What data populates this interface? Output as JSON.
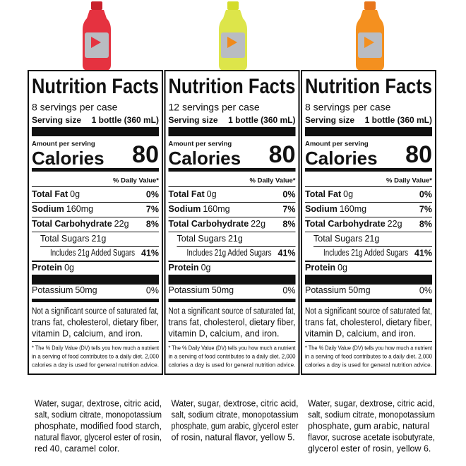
{
  "panels": [
    {
      "title": "Nutrition Facts",
      "servings": "8 servings per case",
      "serving_size_label": "Serving size",
      "serving_size": "1 bottle (360 mL)",
      "amount": "Amount per serving",
      "calories_label": "Calories",
      "calories": 80,
      "dv_header": "% Daily Value*",
      "nutrients": [
        {
          "name": "Total Fat",
          "amount": "0g",
          "dv": "0%"
        },
        {
          "name": "Sodium",
          "amount": "160mg",
          "dv": "7%"
        },
        {
          "name": "Total Carbohydrate",
          "amount": "22g",
          "dv": "8%"
        },
        {
          "name": "Total Sugars",
          "amount": "21g"
        },
        {
          "name": "Includes 21g Added Sugars",
          "dv": "41%"
        },
        {
          "name": "Protein",
          "amount": "0g"
        },
        {
          "name": "Potassium",
          "amount": "50mg",
          "dv": "0%"
        }
      ],
      "note": [
        "Not a significant source of saturated fat,",
        "trans fat, cholesterol, dietary fiber,",
        "vitamin D, calcium, and iron."
      ],
      "footnote": [
        "* The % Daily Value (DV) tells you how much a nutrient",
        "in a serving of food contributes to a daily diet. 2,000",
        "calories a day is used for general nutrition advice."
      ],
      "ingredients": [
        "Water, sugar, dextrose, citric acid,",
        "salt, sodium citrate, monopotassium",
        "phosphate, modified food starch,",
        "natural flavor, glycerol ester of rosin,",
        "red 40, caramel color."
      ]
    },
    {
      "title": "Nutrition Facts",
      "servings": "12 servings per case",
      "serving_size_label": "Serving size",
      "serving_size": "1 bottle (360 mL)",
      "amount": "Amount per serving",
      "calories_label": "Calories",
      "calories": 80,
      "dv_header": "% Daily Value*",
      "nutrients": [
        {
          "name": "Total Fat",
          "amount": "0g",
          "dv": "0%"
        },
        {
          "name": "Sodium",
          "amount": "160mg",
          "dv": "7%"
        },
        {
          "name": "Total Carbohydrate",
          "amount": "22g",
          "dv": "8%"
        },
        {
          "name": "Total Sugars",
          "amount": "21g"
        },
        {
          "name": "Includes 21g Added Sugars",
          "dv": "41%"
        },
        {
          "name": "Protein",
          "amount": "0g"
        },
        {
          "name": "Potassium",
          "amount": "50mg",
          "dv": "0%"
        }
      ],
      "note": [
        "Not a significant source of saturated fat,",
        "trans fat, cholesterol, dietary fiber,",
        "vitamin D, calcium, and iron."
      ],
      "footnote": [
        "* The % Daily Value (DV) tells you how much a nutrient",
        "in a serving of food contributes to a daily diet. 2,000",
        "calories a day is used for general nutrition advice."
      ],
      "ingredients": [
        "Water, sugar, dextrose, citric acid,",
        "salt, sodium citrate, monopotassium",
        "phosphate, gum arabic, glycerol ester",
        "of rosin, natural flavor, yellow 5."
      ]
    },
    {
      "title": "Nutrition Facts",
      "servings": "8 servings per case",
      "serving_size_label": "Serving size",
      "serving_size": "1 bottle (360 mL)",
      "amount": "Amount per serving",
      "calories_label": "Calories",
      "calories": 80,
      "dv_header": "% Daily Value*",
      "nutrients": [
        {
          "name": "Total Fat",
          "amount": "0g",
          "dv": "0%"
        },
        {
          "name": "Sodium",
          "amount": "160mg",
          "dv": "7%"
        },
        {
          "name": "Total Carbohydrate",
          "amount": "22g",
          "dv": "8%"
        },
        {
          "name": "Total Sugars",
          "amount": "21g"
        },
        {
          "name": "Includes 21g Added Sugars",
          "dv": "41%"
        },
        {
          "name": "Protein",
          "amount": "0g"
        },
        {
          "name": "Potassium",
          "amount": "50mg",
          "dv": "0%"
        }
      ],
      "note": [
        "Not a significant source of saturated fat,",
        "trans fat, cholesterol, dietary fiber,",
        "vitamin D, calcium, and iron."
      ],
      "footnote": [
        "* The % Daily Value (DV) tells you how much a nutrient",
        "in a serving of food contributes to a daily diet. 2,000",
        "calories a day is used for general nutrition advice."
      ],
      "ingredients": [
        "Water, sugar, dextrose, citric acid,",
        "salt, sodium citrate, monopotassium",
        "phosphate, gum arabic, natural",
        "flavor, sucrose acetate isobutyrate,",
        "glycerol ester of rosin, yellow 6."
      ]
    }
  ]
}
